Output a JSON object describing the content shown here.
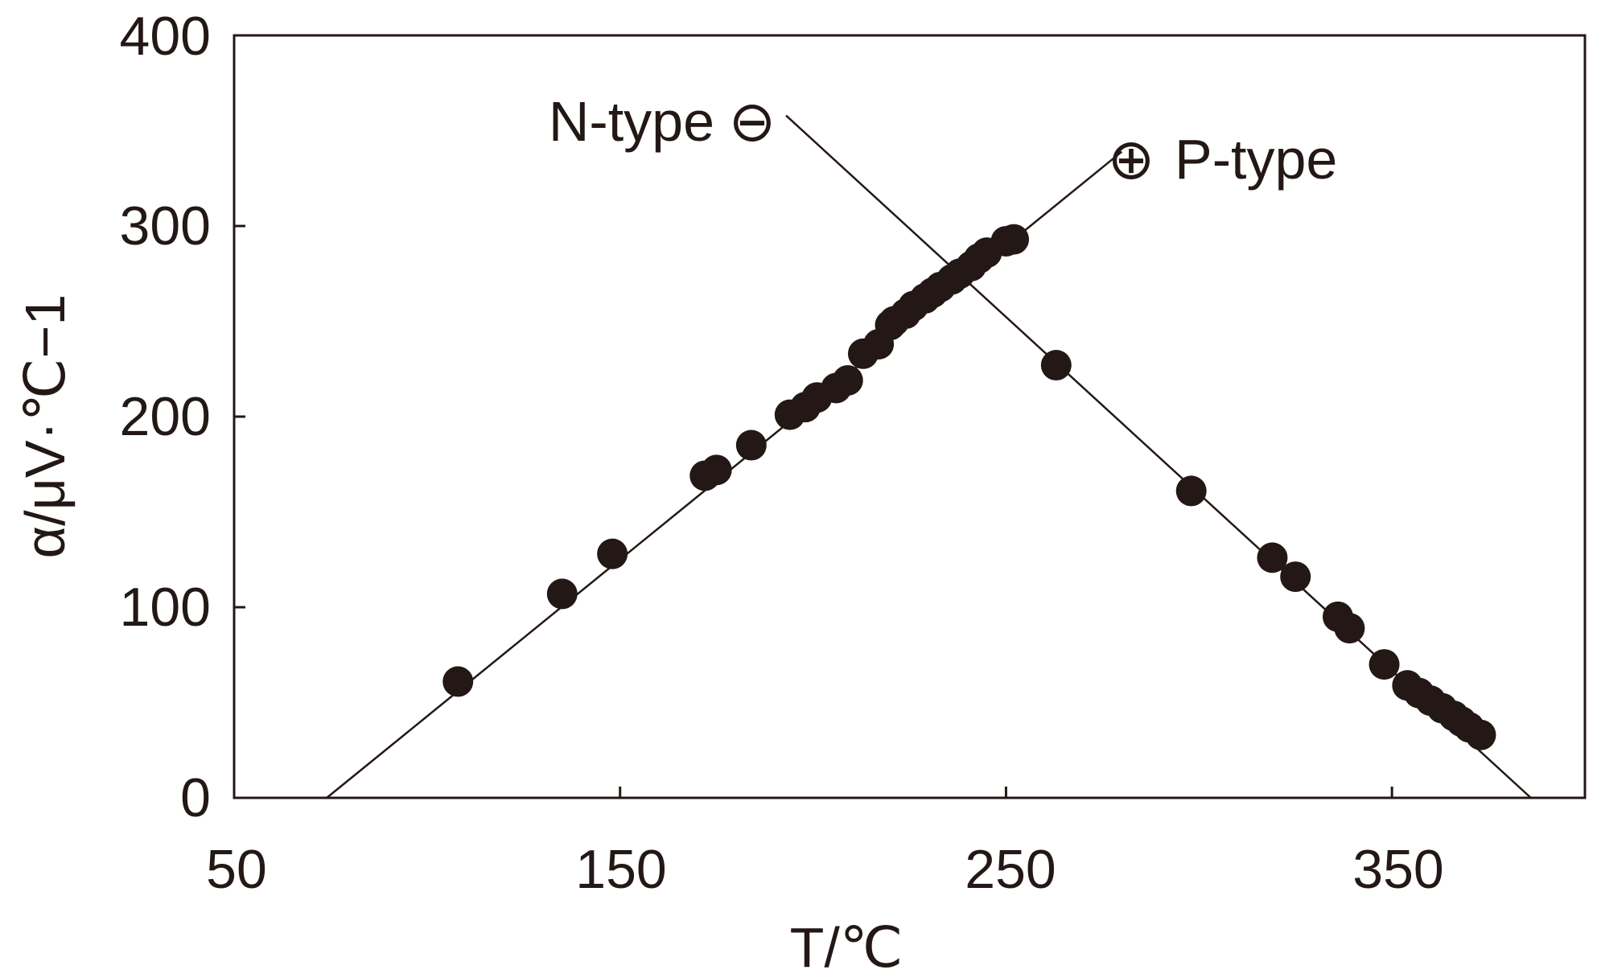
{
  "chart_data": {
    "type": "scatter",
    "xlabel": "T/℃",
    "ylabel": "α/μV·℃−1",
    "xlim": [
      50,
      400
    ],
    "ylim": [
      0,
      400
    ],
    "x_ticks": [
      "50",
      "150",
      "250",
      "350"
    ],
    "y_ticks": [
      "0",
      "100",
      "200",
      "300",
      "400"
    ],
    "grid": false,
    "annotations": [
      {
        "text": "N-type",
        "symbol": "⊖"
      },
      {
        "text": "P-type",
        "symbol": "⊕"
      }
    ],
    "series": [
      {
        "name": "P-type",
        "x": [
          108,
          135,
          148,
          172,
          175,
          184,
          194,
          198,
          201,
          206,
          209,
          213,
          217,
          220,
          221,
          224,
          226,
          229,
          231,
          233,
          236,
          238,
          241,
          243,
          245,
          250,
          252
        ],
        "y": [
          61,
          107,
          128,
          169,
          172,
          185,
          201,
          205,
          210,
          215,
          219,
          233,
          238,
          248,
          250,
          254,
          258,
          262,
          265,
          268,
          272,
          275,
          279,
          283,
          286,
          292,
          293
        ],
        "fit_line": {
          "x": [
            74,
            280
          ],
          "y": [
            0,
            339
          ]
        }
      },
      {
        "name": "N-type",
        "x": [
          263,
          298,
          319,
          325,
          336,
          339,
          348,
          354,
          357,
          360,
          363,
          366,
          368,
          370,
          373
        ],
        "y": [
          227,
          161,
          126,
          116,
          95,
          89,
          70,
          59,
          55,
          51,
          47,
          43,
          40,
          37,
          33
        ],
        "fit_line": {
          "x": [
            193,
            386
          ],
          "y": [
            358,
            0
          ]
        }
      }
    ]
  }
}
